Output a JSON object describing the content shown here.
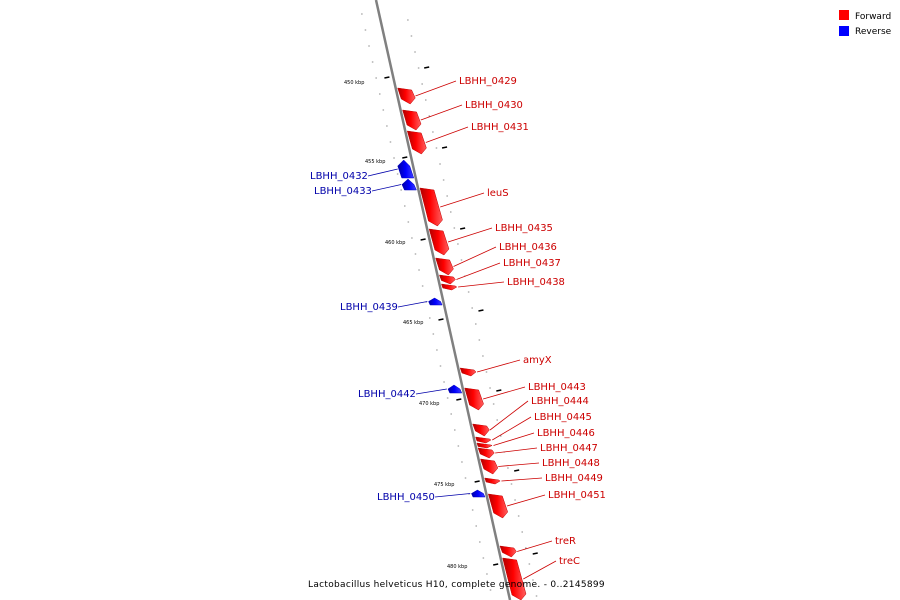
{
  "caption": "Lactobacillus helveticus H10, complete genome. - 0..2145899",
  "legend": [
    {
      "label": "Forward",
      "color": "#ff0000"
    },
    {
      "label": "Reverse",
      "color": "#0000ff"
    }
  ],
  "colors": {
    "forward": "#ff0000",
    "reverse": "#0000ff",
    "label_forward": "#cc0000",
    "label_reverse": "#0000aa",
    "backbone": "#808080"
  },
  "ticks": [
    "450 kbp",
    "455 kbp",
    "460 kbp",
    "465 kbp",
    "470 kbp",
    "475 kbp",
    "480 kbp"
  ],
  "genes": [
    {
      "label": "LBHH_0429",
      "strand": "forward"
    },
    {
      "label": "LBHH_0430",
      "strand": "forward"
    },
    {
      "label": "LBHH_0431",
      "strand": "forward"
    },
    {
      "label": "LBHH_0432",
      "strand": "reverse"
    },
    {
      "label": "LBHH_0433",
      "strand": "reverse"
    },
    {
      "label": "leuS",
      "strand": "forward"
    },
    {
      "label": "LBHH_0435",
      "strand": "forward"
    },
    {
      "label": "LBHH_0436",
      "strand": "forward"
    },
    {
      "label": "LBHH_0437",
      "strand": "forward"
    },
    {
      "label": "LBHH_0438",
      "strand": "forward"
    },
    {
      "label": "LBHH_0439",
      "strand": "reverse"
    },
    {
      "label": "amyX",
      "strand": "forward"
    },
    {
      "label": "LBHH_0442",
      "strand": "reverse"
    },
    {
      "label": "LBHH_0443",
      "strand": "forward"
    },
    {
      "label": "LBHH_0444",
      "strand": "forward"
    },
    {
      "label": "LBHH_0445",
      "strand": "forward"
    },
    {
      "label": "LBHH_0446",
      "strand": "forward"
    },
    {
      "label": "LBHH_0447",
      "strand": "forward"
    },
    {
      "label": "LBHH_0448",
      "strand": "forward"
    },
    {
      "label": "LBHH_0449",
      "strand": "forward"
    },
    {
      "label": "LBHH_0450",
      "strand": "reverse"
    },
    {
      "label": "LBHH_0451",
      "strand": "forward"
    },
    {
      "label": "treR",
      "strand": "forward"
    },
    {
      "label": "treC",
      "strand": "forward"
    }
  ]
}
